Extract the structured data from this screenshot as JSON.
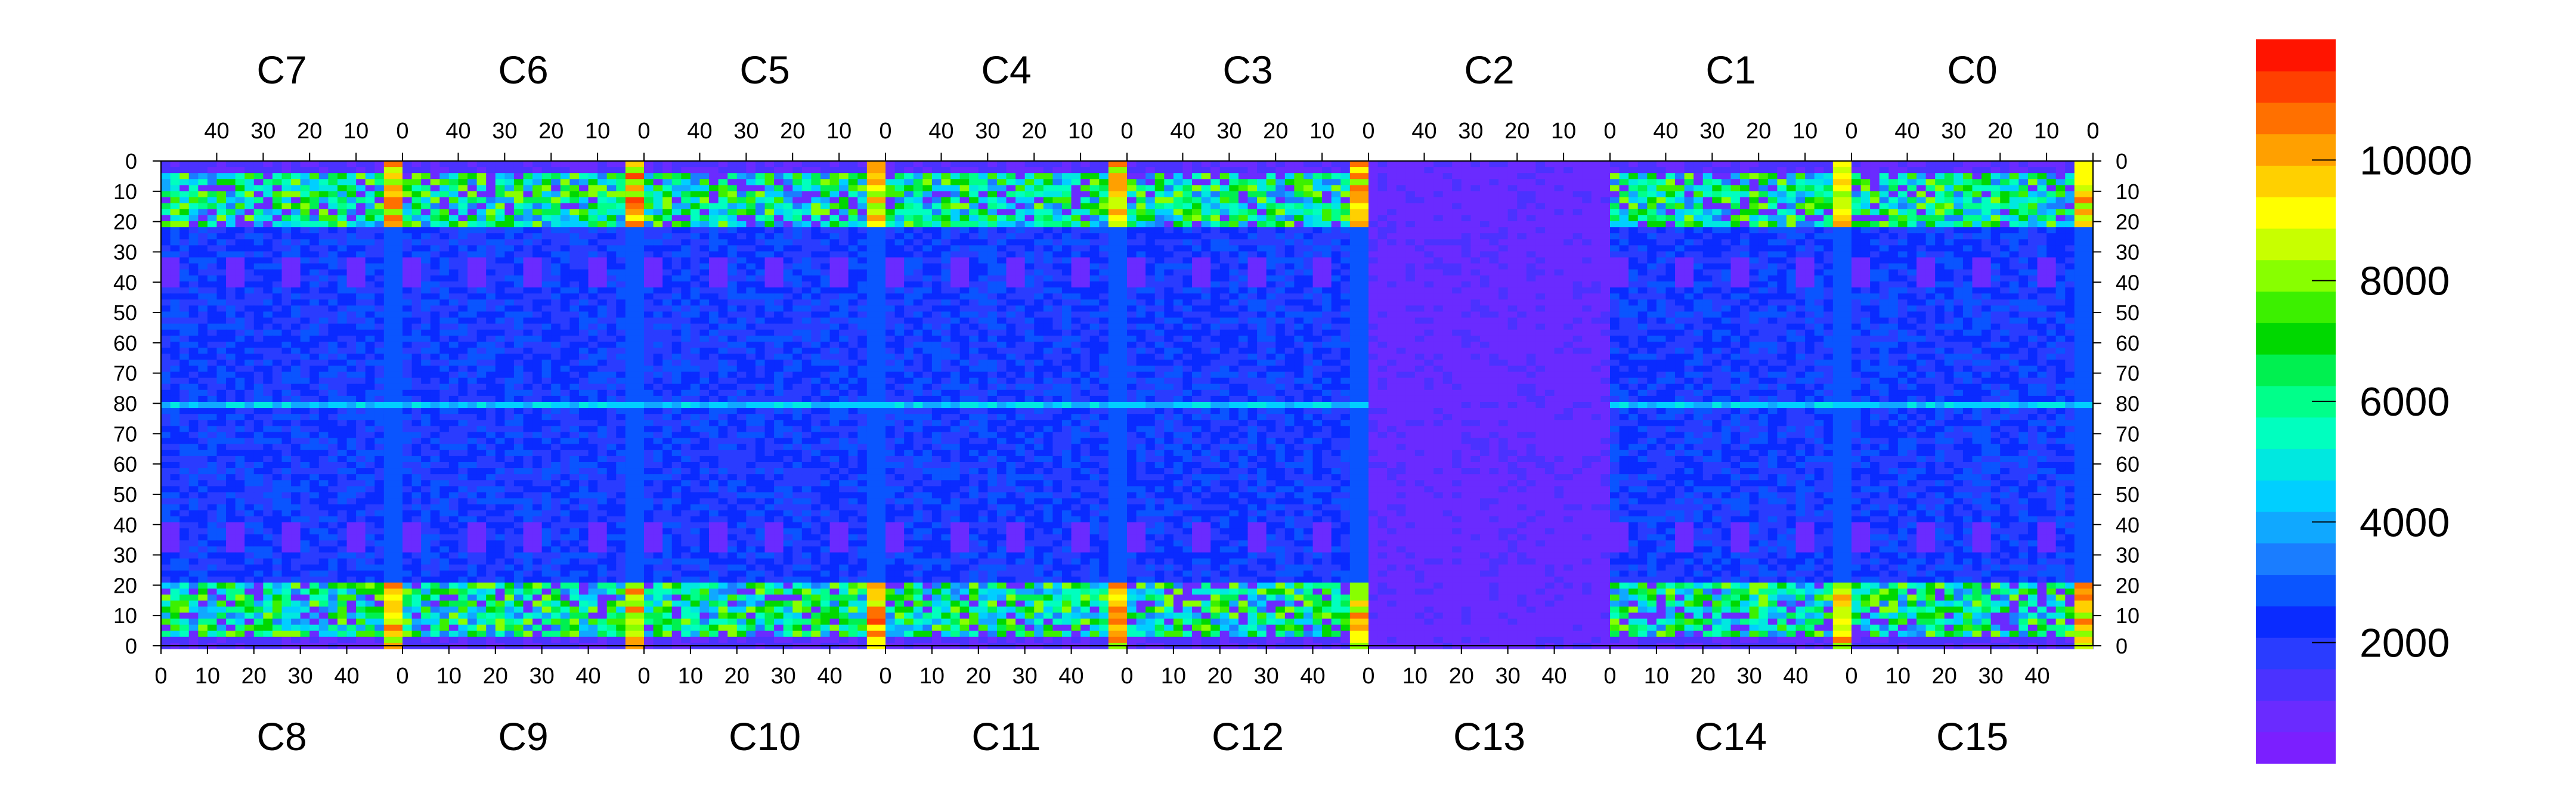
{
  "chart_data": {
    "type": "heatmap",
    "title": "",
    "top_chip_labels": [
      "C7",
      "C6",
      "C5",
      "C4",
      "C3",
      "C2",
      "C1",
      "C0"
    ],
    "bottom_chip_labels": [
      "C8",
      "C9",
      "C10",
      "C11",
      "C12",
      "C13",
      "C14",
      "C15"
    ],
    "top_axis_ticks_per_chip": [
      "40",
      "30",
      "20",
      "10",
      "0"
    ],
    "bottom_axis_ticks_per_chip": [
      "0",
      "10",
      "20",
      "30",
      "40"
    ],
    "top_axis_right_end": "0",
    "left_axis_ticks": [
      "0",
      "10",
      "20",
      "30",
      "40",
      "50",
      "60",
      "70",
      "80",
      "70",
      "60",
      "50",
      "40",
      "30",
      "20",
      "10",
      "0"
    ],
    "right_axis_ticks": [
      "0",
      "10",
      "20",
      "30",
      "40",
      "50",
      "60",
      "70",
      "80",
      "70",
      "60",
      "50",
      "40",
      "30",
      "20",
      "10",
      "0"
    ],
    "columns_per_chip": 52,
    "rows_per_half": 80,
    "z_range": [
      0,
      12000
    ],
    "colorbar_ticks": [
      {
        "value": 2000,
        "label": "2000"
      },
      {
        "value": 4000,
        "label": "4000"
      },
      {
        "value": 6000,
        "label": "6000"
      },
      {
        "value": 8000,
        "label": "8000"
      },
      {
        "value": 10000,
        "label": "10000"
      }
    ],
    "colorbar_colors": [
      "#7b1fff",
      "#6a2bff",
      "#4b32ff",
      "#2a3cff",
      "#0a2bff",
      "#0a55ff",
      "#1a7dff",
      "#10a8ff",
      "#00cfff",
      "#00e8e0",
      "#00ffbf",
      "#00ff8a",
      "#00f050",
      "#00d800",
      "#3cf000",
      "#88ff00",
      "#c8ff00",
      "#ffff00",
      "#ffd000",
      "#ffa000",
      "#ff7000",
      "#ff4000",
      "#ff1400"
    ],
    "chip_profile": {
      "background_level": 1000,
      "middle_band_level": 2300,
      "middle_band_rows": [
        20,
        80
      ],
      "central_row_level": 4200,
      "active_region_level": 5500,
      "hot_edge_column_level": 10500,
      "empty_chips": [
        "C13"
      ],
      "white_pixel_chip": "C13"
    }
  }
}
